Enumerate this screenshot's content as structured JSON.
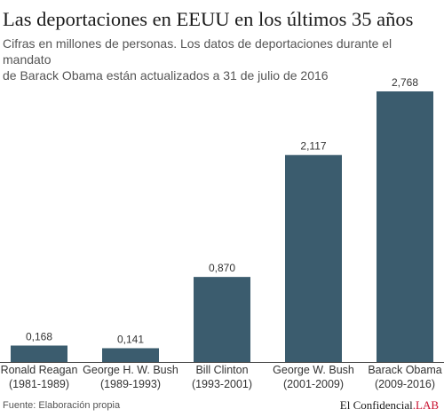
{
  "header": {
    "title": "Las deportaciones en EEUU en los últimos 35 años",
    "subtitle_line1": "Cifras en millones de personas. Los datos de deportaciones durante el mandato",
    "subtitle_line2": "de Barack Obama están actualizados a 31 de julio de 2016"
  },
  "footer": {
    "source": "Fuente: Elaboración propia",
    "brand_name": "El Confidencial",
    "brand_suffix": ".LAB"
  },
  "chart_data": {
    "type": "bar",
    "categories": [
      [
        "Ronald Reagan",
        "(1981-1989)"
      ],
      [
        "George H. W. Bush",
        "(1989-1993)"
      ],
      [
        "Bill Clinton",
        "(1993-2001)"
      ],
      [
        "George W. Bush",
        "(2001-2009)"
      ],
      [
        "Barack Obama",
        "(2009-2016)"
      ]
    ],
    "values": [
      0.168,
      0.141,
      0.87,
      2.117,
      2.768
    ],
    "value_labels": [
      "0,168",
      "0,141",
      "0,870",
      "2,117",
      "2,768"
    ],
    "ylim": [
      0,
      2.768
    ],
    "grid": false,
    "bar_color": "#3b5c6e",
    "baseline_color": "#444444"
  }
}
